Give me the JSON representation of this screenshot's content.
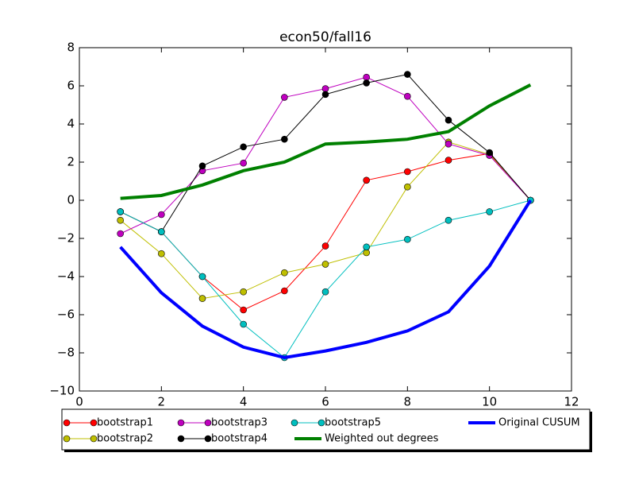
{
  "chart_data": {
    "type": "line",
    "title": "econ50/fall16",
    "x": [
      1,
      2,
      3,
      4,
      5,
      6,
      7,
      8,
      9,
      10,
      11
    ],
    "series": [
      {
        "name": "bootstrap1",
        "color": "#ff0000",
        "marker": "o",
        "linewidth": 1,
        "values": [
          -0.6,
          -1.65,
          -4.0,
          -5.75,
          -4.75,
          -2.4,
          1.05,
          1.5,
          2.1,
          2.45,
          0
        ]
      },
      {
        "name": "bootstrap2",
        "color": "#bfbf00",
        "marker": "o",
        "linewidth": 1,
        "values": [
          -1.05,
          -2.8,
          -5.15,
          -4.8,
          -3.8,
          -3.35,
          -2.75,
          0.7,
          3.05,
          2.4,
          0
        ]
      },
      {
        "name": "bootstrap3",
        "color": "#bf00bf",
        "marker": "o",
        "linewidth": 1,
        "values": [
          -1.75,
          -0.75,
          1.55,
          1.95,
          5.4,
          5.85,
          6.45,
          5.45,
          2.95,
          2.35,
          0
        ]
      },
      {
        "name": "bootstrap4",
        "color": "#000000",
        "marker": "o",
        "linewidth": 1,
        "values": [
          -0.6,
          -1.65,
          1.8,
          2.8,
          3.2,
          5.55,
          6.15,
          6.6,
          4.2,
          2.5,
          0
        ]
      },
      {
        "name": "bootstrap5",
        "color": "#00bfbf",
        "marker": "o",
        "linewidth": 1,
        "values": [
          -0.6,
          -1.65,
          -4.0,
          -6.5,
          -8.25,
          -4.8,
          -2.45,
          -2.05,
          -1.05,
          -0.6,
          0
        ]
      },
      {
        "name": "Weighted out degrees",
        "color": "#008000",
        "linewidth": 4,
        "values": [
          0.1,
          0.25,
          0.8,
          1.55,
          2.0,
          2.95,
          3.05,
          3.2,
          3.6,
          4.95,
          6.05
        ]
      },
      {
        "name": "Original CUSUM",
        "color": "#0000ff",
        "linewidth": 4,
        "values": [
          -2.45,
          -4.85,
          -6.6,
          -7.7,
          -8.25,
          -7.9,
          -7.45,
          -6.85,
          -5.85,
          -3.45,
          0
        ]
      }
    ],
    "xlim": [
      0,
      12
    ],
    "xticks": [
      0,
      2,
      4,
      6,
      8,
      10,
      12
    ],
    "ylim": [
      -10,
      8
    ],
    "yticks": [
      {
        "value": -10,
        "label": "−10"
      },
      {
        "value": -8,
        "label": "−8"
      },
      {
        "value": -6,
        "label": "−6"
      },
      {
        "value": -4,
        "label": "−4"
      },
      {
        "value": -2,
        "label": "−2"
      },
      0,
      2,
      4,
      6,
      8
    ],
    "legend": "bottom"
  }
}
